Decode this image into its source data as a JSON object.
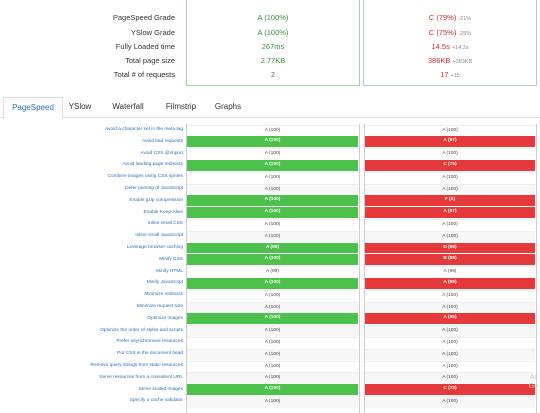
{
  "summary": {
    "rows": [
      {
        "label": "PageSpeed Grade",
        "a": "A (100%)",
        "b": "C (79%)",
        "b_delta": "-21%",
        "b_style": "bad"
      },
      {
        "label": "YSlow Grade",
        "a": "A (100%)",
        "b": "C (75%)",
        "b_delta": "-25%",
        "b_style": "bad"
      },
      {
        "label": "Fully Loaded time",
        "a": "267ms",
        "b": "14.5s",
        "b_delta": "+14.2s",
        "b_style": "bad"
      },
      {
        "label": "Total page size",
        "a": "2.77KB",
        "b": "386KB",
        "b_delta": "+383KB",
        "b_style": "bad"
      },
      {
        "label": "Total # of requests",
        "a": "2",
        "b": "17",
        "b_delta": "+15",
        "b_style": "bad"
      }
    ]
  },
  "tabs": [
    {
      "label": "PageSpeed",
      "active": true
    },
    {
      "label": "YSlow",
      "active": false
    },
    {
      "label": "Waterfall",
      "active": false
    },
    {
      "label": "Filmstrip",
      "active": false
    },
    {
      "label": "Graphs",
      "active": false
    }
  ],
  "rules": [
    {
      "label": "Avoid a character set in the meta tag",
      "a": "A (100)",
      "b": "A (100)",
      "a_state": "plain",
      "b_state": "plain"
    },
    {
      "label": "Avoid bad requests",
      "a": "A (100)",
      "b": "A (97)",
      "a_state": "green",
      "b_state": "red"
    },
    {
      "label": "Avoid CSS @import",
      "a": "A (100)",
      "b": "A (100)",
      "a_state": "plain",
      "b_state": "plain"
    },
    {
      "label": "Avoid landing page redirects",
      "a": "A (100)",
      "b": "C (75)",
      "a_state": "green",
      "b_state": "red"
    },
    {
      "label": "Combine images using CSS sprites",
      "a": "A (100)",
      "b": "A (100)",
      "a_state": "plain",
      "b_state": "plain"
    },
    {
      "label": "Defer parsing of JavaScript",
      "a": "A (100)",
      "b": "A (100)",
      "a_state": "plain",
      "b_state": "plain"
    },
    {
      "label": "Enable gzip compression",
      "a": "A (100)",
      "b": "F (0)",
      "a_state": "green",
      "b_state": "red"
    },
    {
      "label": "Enable Keep-Alive",
      "a": "A (100)",
      "b": "A (97)",
      "a_state": "green",
      "b_state": "red"
    },
    {
      "label": "Inline small CSS",
      "a": "A (100)",
      "b": "A (100)",
      "a_state": "plain",
      "b_state": "plain"
    },
    {
      "label": "Inline small JavaScript",
      "a": "A (100)",
      "b": "A (100)",
      "a_state": "plain",
      "b_state": "plain"
    },
    {
      "label": "Leverage browser caching",
      "a": "A (98)",
      "b": "D (68)",
      "a_state": "green",
      "b_state": "red"
    },
    {
      "label": "Minify CSS",
      "a": "A (100)",
      "b": "B (88)",
      "a_state": "green",
      "b_state": "red"
    },
    {
      "label": "Minify HTML",
      "a": "A (99)",
      "b": "A (99)",
      "a_state": "plain",
      "b_state": "plain"
    },
    {
      "label": "Minify JavaScript",
      "a": "A (100)",
      "b": "A (99)",
      "a_state": "green",
      "b_state": "red"
    },
    {
      "label": "Minimize redirects",
      "a": "A (100)",
      "b": "A (100)",
      "a_state": "plain",
      "b_state": "plain"
    },
    {
      "label": "Minimize request size",
      "a": "A (100)",
      "b": "A (100)",
      "a_state": "plain",
      "b_state": "plain"
    },
    {
      "label": "Optimize images",
      "a": "A (100)",
      "b": "A (95)",
      "a_state": "green",
      "b_state": "red"
    },
    {
      "label": "Optimize the order of styles and scripts",
      "a": "A (100)",
      "b": "A (100)",
      "a_state": "plain",
      "b_state": "plain"
    },
    {
      "label": "Prefer asynchronous resources",
      "a": "A (100)",
      "b": "A (100)",
      "a_state": "plain",
      "b_state": "plain"
    },
    {
      "label": "Put CSS in the document head",
      "a": "A (100)",
      "b": "A (100)",
      "a_state": "plain",
      "b_state": "plain"
    },
    {
      "label": "Remove query strings from static resources",
      "a": "A (100)",
      "b": "A (100)",
      "a_state": "plain",
      "b_state": "plain"
    },
    {
      "label": "Serve resources from a consistent URL",
      "a": "A (100)",
      "b": "A (100)",
      "a_state": "plain",
      "b_state": "plain"
    },
    {
      "label": "Serve scaled images",
      "a": "A (100)",
      "b": "C (73)",
      "a_state": "green",
      "b_state": "red"
    },
    {
      "label": "Specify a cache validator",
      "a": "A (100)",
      "b": "A (100)",
      "a_state": "plain",
      "b_state": "plain"
    }
  ],
  "watermark": "Ac\nGo"
}
